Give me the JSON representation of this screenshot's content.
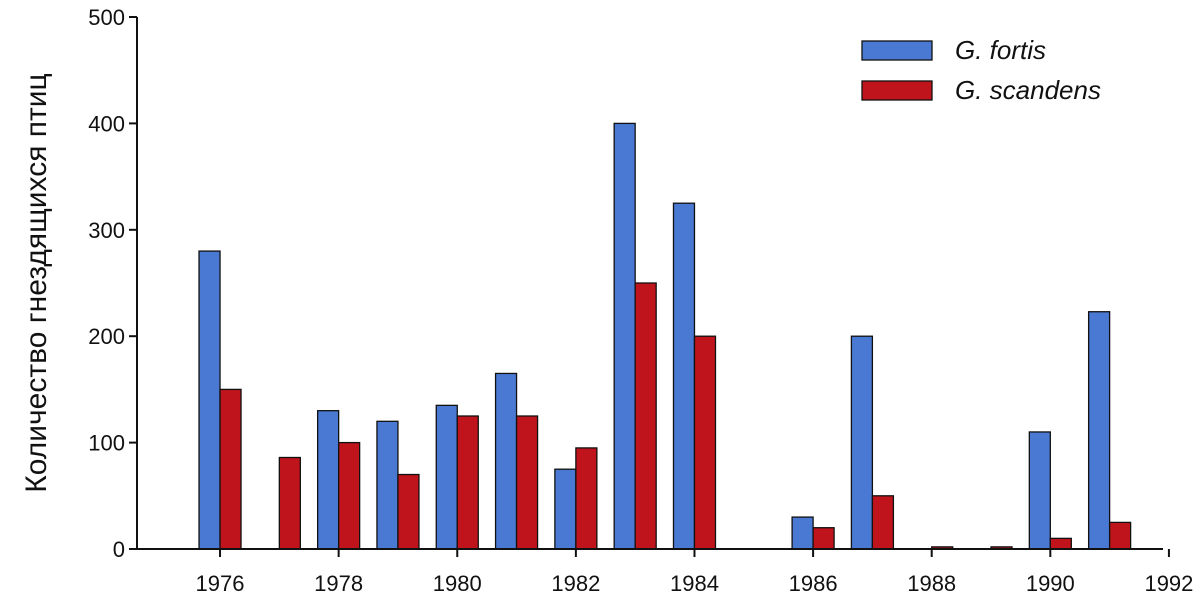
{
  "chart_data": {
    "type": "bar",
    "title": "",
    "xlabel": "",
    "ylabel": "Количество гнездящихся птиц",
    "ylim": [
      0,
      500
    ],
    "yticks": [
      "0",
      "100",
      "200",
      "300",
      "400",
      "500"
    ],
    "xticks": [
      "1976",
      "1978",
      "1980",
      "1982",
      "1984",
      "1986",
      "1988",
      "1990",
      "1992"
    ],
    "grid": false,
    "legend_position": "top-right",
    "categories": [
      "1976",
      "1977",
      "1978",
      "1979",
      "1980",
      "1981",
      "1982",
      "1983",
      "1984",
      "1985",
      "1986",
      "1987",
      "1988",
      "1989",
      "1990",
      "1991"
    ],
    "series": [
      {
        "name": "G. fortis",
        "color": "#4a79d3",
        "values": [
          280,
          0,
          130,
          120,
          135,
          165,
          75,
          400,
          325,
          0,
          30,
          200,
          0,
          0,
          110,
          223
        ]
      },
      {
        "name": "G. scandens",
        "color": "#c0141c",
        "values": [
          150,
          86,
          100,
          70,
          125,
          125,
          95,
          250,
          200,
          0,
          20,
          50,
          2,
          2,
          10,
          25
        ]
      }
    ]
  }
}
